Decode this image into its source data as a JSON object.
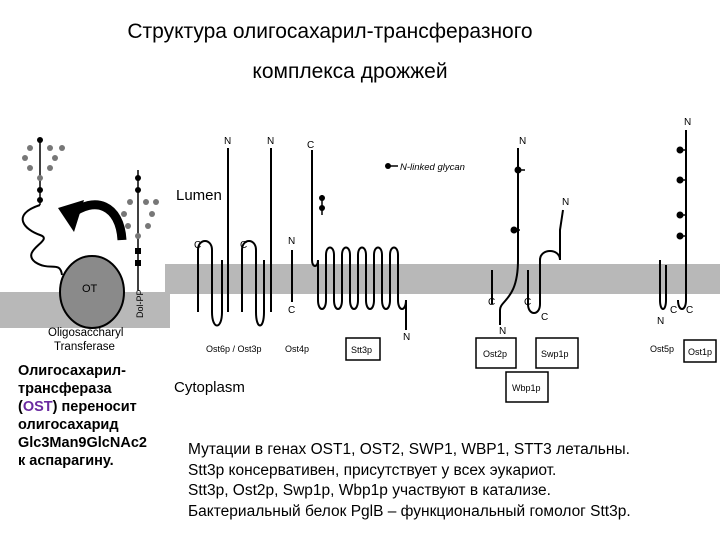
{
  "title": {
    "line1": "Структура олигосахарил-трансферазного",
    "line2": "комплекса дрожжей"
  },
  "figure": {
    "lumen": "Lumen",
    "cytoplasm": "Cytoplasm",
    "nlinked": "N-linked glycan",
    "ot": "OT",
    "dolpp": "Dol-PP",
    "ost_caption1": "Oligosaccharyl",
    "ost_caption2": "Transferase",
    "N": "N",
    "C": "C",
    "subunits": [
      "Ost6p / Ost3p",
      "Ost4p",
      "Stt3p",
      "Ost2p",
      "Swp1p",
      "Wbp1p",
      "Ost5p",
      "Ost1p"
    ]
  },
  "left_text": {
    "l1": "Олигосахарил-",
    "l2": "трансфераза",
    "l3a": "(",
    "l3b": "OST",
    "l3c": ") переносит",
    "l4": "олигосахарид",
    "l5": "Glc3Man9GlcNAc2",
    "l6": "к аспарагину."
  },
  "bottom_text": {
    "l1": "Мутации в генах OST1, OST2, SWP1, WBP1, STT3 летальны.",
    "l2": "Stt3p  консервативен, присутствует у всех эукариот.",
    "l3": "Stt3p, Ost2p, Swp1p, Wbp1p участвуют в катализе.",
    "l4": "Бактериальный белок PglB – функциональный гомолог Stt3p."
  },
  "colors": {
    "membrane": "#b8b8b8",
    "ot_body": "#8a8a8a",
    "ost_highlight": "#6a2aa0"
  }
}
